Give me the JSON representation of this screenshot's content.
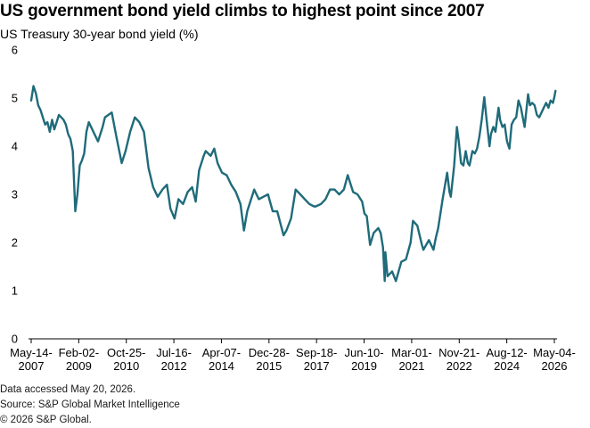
{
  "header": {
    "title": "US government bond yield climbs to highest point since 2007",
    "subtitle": "US Treasury 30-year bond yield (%)"
  },
  "footer": {
    "accessed": "Data accessed May 20, 2026.",
    "source": "Source: S&P Global Market Intelligence",
    "copyright": "© 2026 S&P Global."
  },
  "colors": {
    "series": "#1f6b7a",
    "axis": "#000000"
  },
  "chart_data": {
    "type": "line",
    "title": "US government bond yield climbs to highest point since 2007",
    "subtitle": "US Treasury 30-year bond yield (%)",
    "xlabel": "",
    "ylabel": "",
    "ylim": [
      0,
      6
    ],
    "yticks": [
      0,
      1,
      2,
      3,
      4,
      5,
      6
    ],
    "grid": false,
    "legend": "none",
    "x_tick_labels": [
      {
        "date": "2007-05-14",
        "line1": "May-14-",
        "line2": "2007"
      },
      {
        "date": "2009-02-02",
        "line1": "Feb-02-",
        "line2": "2009"
      },
      {
        "date": "2010-10-25",
        "line1": "Oct-25-",
        "line2": "2010"
      },
      {
        "date": "2012-07-16",
        "line1": "Jul-16-",
        "line2": "2012"
      },
      {
        "date": "2014-04-07",
        "line1": "Apr-07-",
        "line2": "2014"
      },
      {
        "date": "2015-12-28",
        "line1": "Dec-28-",
        "line2": "2015"
      },
      {
        "date": "2017-09-18",
        "line1": "Sep-18-",
        "line2": "2017"
      },
      {
        "date": "2019-06-10",
        "line1": "Jun-10-",
        "line2": "2019"
      },
      {
        "date": "2021-03-01",
        "line1": "Mar-01-",
        "line2": "2021"
      },
      {
        "date": "2022-11-21",
        "line1": "Nov-21-",
        "line2": "2022"
      },
      {
        "date": "2024-08-12",
        "line1": "Aug-12-",
        "line2": "2024"
      },
      {
        "date": "2026-05-04",
        "line1": "May-04-",
        "line2": "2026"
      }
    ],
    "series": [
      {
        "x": [
          "2007-05-14",
          "2007-06-13",
          "2007-07-15",
          "2007-08-15",
          "2007-09-15",
          "2007-10-15",
          "2007-11-15",
          "2007-12-15",
          "2008-01-15",
          "2008-02-15",
          "2008-03-15",
          "2008-04-15",
          "2008-05-15",
          "2008-06-15",
          "2008-07-15",
          "2008-08-15",
          "2008-09-15",
          "2008-10-15",
          "2008-11-15",
          "2008-12-18",
          "2009-01-15",
          "2009-02-15",
          "2009-03-15",
          "2009-04-15",
          "2009-05-15",
          "2009-06-15",
          "2009-08-15",
          "2009-10-15",
          "2009-12-15",
          "2010-01-15",
          "2010-04-15",
          "2010-06-15",
          "2010-08-25",
          "2010-10-15",
          "2010-12-15",
          "2011-02-15",
          "2011-04-15",
          "2011-06-15",
          "2011-08-15",
          "2011-10-15",
          "2011-12-15",
          "2012-02-15",
          "2012-04-15",
          "2012-06-01",
          "2012-07-25",
          "2012-09-15",
          "2012-11-15",
          "2013-01-15",
          "2013-03-15",
          "2013-05-01",
          "2013-06-15",
          "2013-08-15",
          "2013-09-10",
          "2013-11-15",
          "2014-01-02",
          "2014-02-15",
          "2014-04-15",
          "2014-06-15",
          "2014-08-15",
          "2014-10-15",
          "2014-12-15",
          "2015-01-30",
          "2015-03-15",
          "2015-05-15",
          "2015-06-15",
          "2015-08-15",
          "2015-10-15",
          "2015-12-15",
          "2016-02-15",
          "2016-04-15",
          "2016-07-08",
          "2016-08-15",
          "2016-10-15",
          "2016-12-15",
          "2017-02-15",
          "2017-04-15",
          "2017-06-15",
          "2017-08-15",
          "2017-09-08",
          "2017-11-15",
          "2018-01-15",
          "2018-03-15",
          "2018-05-15",
          "2018-07-15",
          "2018-09-15",
          "2018-11-05",
          "2019-01-15",
          "2019-03-15",
          "2019-05-15",
          "2019-06-15",
          "2019-07-15",
          "2019-08-28",
          "2019-10-15",
          "2019-12-15",
          "2020-01-15",
          "2020-02-15",
          "2020-03-09",
          "2020-03-18",
          "2020-04-15",
          "2020-06-15",
          "2020-08-04",
          "2020-10-15",
          "2020-12-15",
          "2021-02-15",
          "2021-03-18",
          "2021-05-15",
          "2021-07-15",
          "2021-08-03",
          "2021-10-15",
          "2021-12-15",
          "2022-01-15",
          "2022-02-15",
          "2022-04-15",
          "2022-06-14",
          "2022-07-15",
          "2022-08-01",
          "2022-09-15",
          "2022-10-21",
          "2022-11-15",
          "2022-12-15",
          "2023-01-15",
          "2023-02-15",
          "2023-03-15",
          "2023-04-06",
          "2023-05-15",
          "2023-06-15",
          "2023-07-15",
          "2023-08-15",
          "2023-09-15",
          "2023-10-19",
          "2023-11-15",
          "2023-12-27",
          "2024-01-15",
          "2024-02-15",
          "2024-03-15",
          "2024-04-25",
          "2024-05-15",
          "2024-06-15",
          "2024-07-15",
          "2024-08-15",
          "2024-09-16",
          "2024-10-15",
          "2024-11-15",
          "2024-12-15",
          "2025-01-14",
          "2025-02-15",
          "2025-04-05",
          "2025-05-21",
          "2025-06-15",
          "2025-07-15",
          "2025-08-15",
          "2025-09-15",
          "2025-10-15",
          "2025-11-15",
          "2025-12-15",
          "2026-01-15",
          "2026-02-15",
          "2026-03-15",
          "2026-04-15",
          "2026-05-04",
          "2026-05-19"
        ],
        "y": [
          4.95,
          5.25,
          5.1,
          4.85,
          4.75,
          4.6,
          4.45,
          4.5,
          4.3,
          4.55,
          4.35,
          4.5,
          4.65,
          4.6,
          4.55,
          4.45,
          4.25,
          4.15,
          3.9,
          2.65,
          3.0,
          3.6,
          3.7,
          3.85,
          4.3,
          4.5,
          4.3,
          4.1,
          4.4,
          4.6,
          4.7,
          4.2,
          3.65,
          3.9,
          4.3,
          4.6,
          4.5,
          4.3,
          3.55,
          3.15,
          2.95,
          3.1,
          3.2,
          2.7,
          2.5,
          2.9,
          2.8,
          3.05,
          3.15,
          2.85,
          3.5,
          3.8,
          3.9,
          3.8,
          3.95,
          3.65,
          3.45,
          3.4,
          3.2,
          3.05,
          2.8,
          2.25,
          2.65,
          2.95,
          3.1,
          2.9,
          2.95,
          3.0,
          2.65,
          2.65,
          2.15,
          2.25,
          2.5,
          3.1,
          3.0,
          2.9,
          2.8,
          2.75,
          2.75,
          2.8,
          2.9,
          3.1,
          3.1,
          3.0,
          3.1,
          3.4,
          3.05,
          3.0,
          2.85,
          2.6,
          2.55,
          1.95,
          2.2,
          2.3,
          2.2,
          1.9,
          1.2,
          1.8,
          1.3,
          1.4,
          1.2,
          1.6,
          1.65,
          2.0,
          2.45,
          2.35,
          1.95,
          1.85,
          2.05,
          1.85,
          2.1,
          2.3,
          2.9,
          3.45,
          3.05,
          2.95,
          3.6,
          4.4,
          4.1,
          3.65,
          3.6,
          3.9,
          3.65,
          3.6,
          3.9,
          3.85,
          3.95,
          4.2,
          4.55,
          5.02,
          4.6,
          4.0,
          4.25,
          4.4,
          4.3,
          4.8,
          4.55,
          4.4,
          4.45,
          4.1,
          3.95,
          4.45,
          4.55,
          4.6,
          4.95,
          4.8,
          4.4,
          5.08,
          4.85,
          4.9,
          4.85,
          4.65,
          4.6,
          4.7,
          4.8,
          4.9,
          4.8,
          4.95,
          4.9,
          5.02,
          5.15
        ]
      }
    ]
  }
}
